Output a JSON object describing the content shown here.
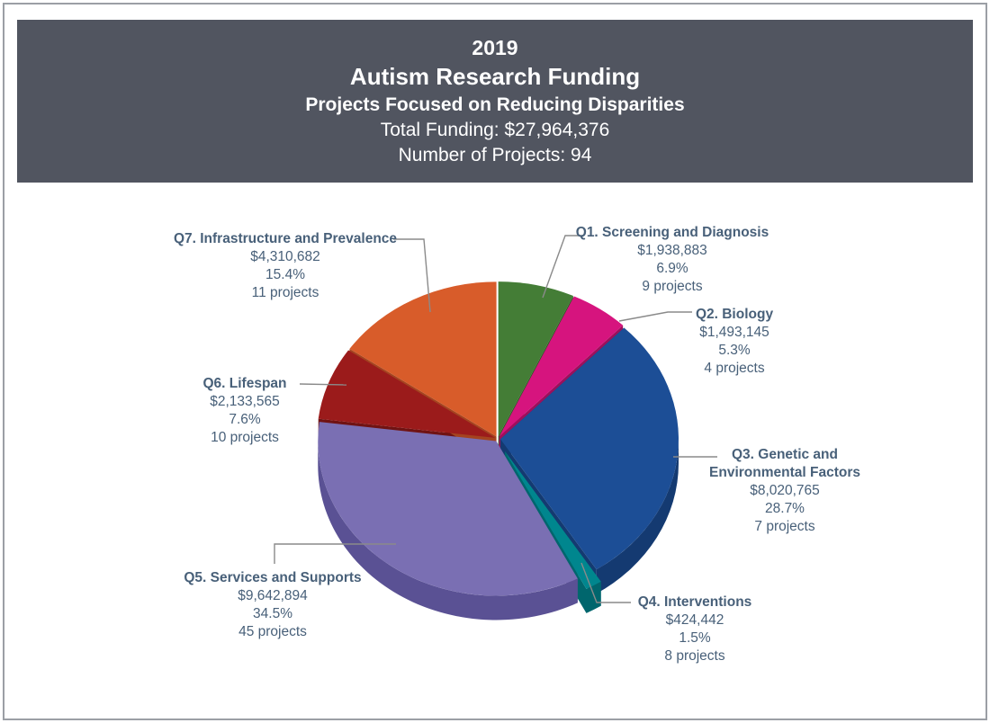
{
  "page": {
    "border_color": "#9b9fa5",
    "background": "#ffffff"
  },
  "header": {
    "background": "#515560",
    "text_color": "#ffffff",
    "lines": [
      "2019",
      "Autism Research Funding",
      "Projects Focused on Reducing Disparities",
      "Total Funding: $27,964,376",
      "Number of Projects: 94"
    ]
  },
  "chart_data": {
    "type": "pie",
    "title": "2019 Autism Research Funding",
    "subtitle": "Projects Focused on Reducing Disparities",
    "total_funding": "$27,964,376",
    "number_of_projects": 94,
    "start_angle_deg": 0,
    "clockwise": true,
    "style": "3d-pie with exploded Q4 slice, external labels with gray leader lines",
    "label_text_color": "#486079",
    "leader_line_color": "#8a8a8a",
    "slices": [
      {
        "name": "Q1. Screening and Diagnosis",
        "label_lines": [
          "Q1. Screening and Diagnosis"
        ],
        "amount": "$1,938,883",
        "percent": 6.9,
        "percent_label": "6.9%",
        "projects": 9,
        "projects_label": "9 projects",
        "color": "#447d36",
        "side_color": "#2f5c25"
      },
      {
        "name": "Q2. Biology",
        "label_lines": [
          "Q2. Biology"
        ],
        "amount": "$1,493,145",
        "percent": 5.3,
        "percent_label": "5.3%",
        "projects": 4,
        "projects_label": "4 projects",
        "color": "#d6147e",
        "side_color": "#9e0f5c"
      },
      {
        "name": "Q3. Genetic and Environmental Factors",
        "label_lines": [
          "Q3. Genetic and",
          "Environmental Factors"
        ],
        "amount": "$8,020,765",
        "percent": 28.7,
        "percent_label": "28.7%",
        "projects": 7,
        "projects_label": "7 projects",
        "color": "#1c4e96",
        "side_color": "#143a71"
      },
      {
        "name": "Q4. Interventions",
        "label_lines": [
          "Q4. Interventions"
        ],
        "amount": "$424,442",
        "percent": 1.5,
        "percent_label": "1.5%",
        "projects": 8,
        "projects_label": "8 projects",
        "color": "#00868e",
        "side_color": "#00666d",
        "exploded": true
      },
      {
        "name": "Q5. Services and Supports",
        "label_lines": [
          "Q5. Services and Supports"
        ],
        "amount": "$9,642,894",
        "percent": 34.5,
        "percent_label": "34.5%",
        "projects": 45,
        "projects_label": "45 projects",
        "color": "#7a6fb3",
        "side_color": "#5a5194"
      },
      {
        "name": "Q6. Lifespan",
        "label_lines": [
          "Q6. Lifespan"
        ],
        "amount": "$2,133,565",
        "percent": 7.6,
        "percent_label": "7.6%",
        "projects": 10,
        "projects_label": "10 projects",
        "color": "#9b1b1b",
        "side_color": "#701313"
      },
      {
        "name": "Q7. Infrastructure and Prevalence",
        "label_lines": [
          "Q7. Infrastructure and Prevalence"
        ],
        "amount": "$4,310,682",
        "percent": 15.4,
        "percent_label": "15.4%",
        "projects": 11,
        "projects_label": "11 projects",
        "color": "#d85c2a",
        "side_color": "#a4431f"
      }
    ]
  }
}
